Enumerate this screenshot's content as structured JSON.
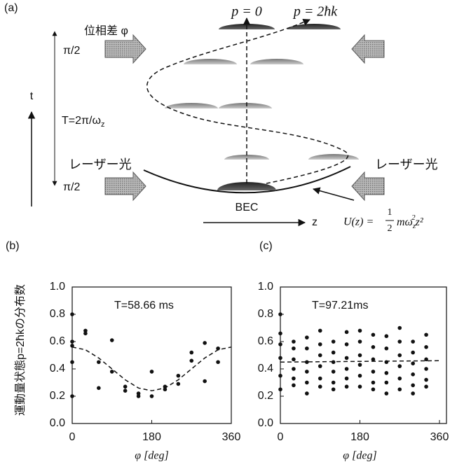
{
  "diagram": {
    "label": "(a)",
    "p0": "p = 0",
    "p2": "p = 2ħk",
    "phase": "位相差 φ",
    "pi_top": "π/2",
    "pi_bottom": "π/2",
    "t": "t",
    "period": {
      "main": "T=2π/ω",
      "sub": "z"
    },
    "laser_left": "レーザー光",
    "laser_right": "レーザー光",
    "bec": "BEC",
    "z": "z",
    "potential": {
      "lhs": "U(z) =",
      "num": "1",
      "den": "2",
      "term": "mω",
      "sub": "z",
      "sup": "2",
      "tail": "z²"
    }
  },
  "chart_data": [
    {
      "type": "scatter",
      "label": "(b)",
      "ylabel": "運動量状態p=2ħkの分布数",
      "annotation": "T=58.66 ms",
      "xlabel": "φ [deg]",
      "xlim": [
        0,
        360
      ],
      "xticks": [
        0,
        180,
        360
      ],
      "ylim": [
        0,
        1
      ],
      "yticks": [
        {
          "value": 0,
          "label": "0.0"
        },
        0.2,
        0.4,
        0.6,
        0.8,
        {
          "value": 1,
          "label": "1.0"
        }
      ],
      "series": [
        {
          "kind": "points",
          "color": "#111111",
          "x": [
            0,
            0,
            0,
            0,
            0,
            30,
            30,
            60,
            60,
            90,
            90,
            120,
            120,
            150,
            150,
            180,
            180,
            210,
            210,
            240,
            240,
            270,
            270,
            300,
            300,
            330,
            330
          ],
          "values": [
            0.8,
            0.6,
            0.57,
            0.45,
            0.2,
            0.68,
            0.66,
            0.45,
            0.26,
            0.61,
            0.38,
            0.27,
            0.24,
            0.2,
            0.22,
            0.38,
            0.2,
            0.25,
            0.27,
            0.35,
            0.29,
            0.52,
            0.46,
            0.59,
            0.31,
            0.55,
            0.45
          ]
        },
        {
          "kind": "dashed",
          "color": "#111111",
          "x": [
            0,
            30,
            60,
            90,
            120,
            150,
            180,
            210,
            240,
            270,
            300,
            330,
            360
          ],
          "values": [
            0.56,
            0.54,
            0.48,
            0.4,
            0.32,
            0.26,
            0.24,
            0.26,
            0.32,
            0.4,
            0.48,
            0.54,
            0.56
          ]
        }
      ]
    },
    {
      "type": "scatter",
      "label": "(c)",
      "annotation": "T=97.21ms",
      "xlabel": "φ [deg]",
      "xlim": [
        0,
        360
      ],
      "xticks": [
        0,
        180,
        360
      ],
      "ylim": [
        0,
        1
      ],
      "yticks": [
        {
          "value": 0,
          "label": "0.0"
        },
        0.2,
        0.4,
        0.6,
        0.8,
        {
          "value": 1,
          "label": "1.0"
        }
      ],
      "series": [
        {
          "kind": "points",
          "color": "#111111",
          "x": [
            0,
            0,
            0,
            0,
            0,
            0,
            30,
            30,
            30,
            30,
            30,
            30,
            60,
            60,
            60,
            60,
            60,
            60,
            90,
            90,
            90,
            90,
            90,
            90,
            120,
            120,
            120,
            120,
            120,
            120,
            150,
            150,
            150,
            150,
            150,
            150,
            180,
            180,
            180,
            180,
            180,
            180,
            210,
            210,
            210,
            210,
            210,
            210,
            240,
            240,
            240,
            240,
            240,
            240,
            270,
            270,
            270,
            270,
            270,
            270,
            300,
            300,
            300,
            300,
            300,
            300,
            330,
            330,
            330,
            330,
            330,
            330
          ],
          "values": [
            0.8,
            0.66,
            0.58,
            0.48,
            0.35,
            0.25,
            0.6,
            0.55,
            0.47,
            0.4,
            0.33,
            0.28,
            0.63,
            0.55,
            0.45,
            0.38,
            0.3,
            0.22,
            0.68,
            0.58,
            0.5,
            0.42,
            0.33,
            0.27,
            0.6,
            0.52,
            0.45,
            0.38,
            0.3,
            0.25,
            0.67,
            0.58,
            0.48,
            0.4,
            0.33,
            0.27,
            0.68,
            0.6,
            0.5,
            0.43,
            0.35,
            0.27,
            0.65,
            0.56,
            0.47,
            0.38,
            0.3,
            0.25,
            0.64,
            0.55,
            0.45,
            0.37,
            0.3,
            0.22,
            0.7,
            0.6,
            0.5,
            0.42,
            0.33,
            0.25,
            0.6,
            0.52,
            0.44,
            0.36,
            0.28,
            0.22,
            0.65,
            0.56,
            0.47,
            0.4,
            0.32,
            0.27
          ]
        },
        {
          "kind": "dashed",
          "color": "#111111",
          "x": [
            0,
            360
          ],
          "values": [
            0.45,
            0.46
          ]
        }
      ]
    }
  ]
}
